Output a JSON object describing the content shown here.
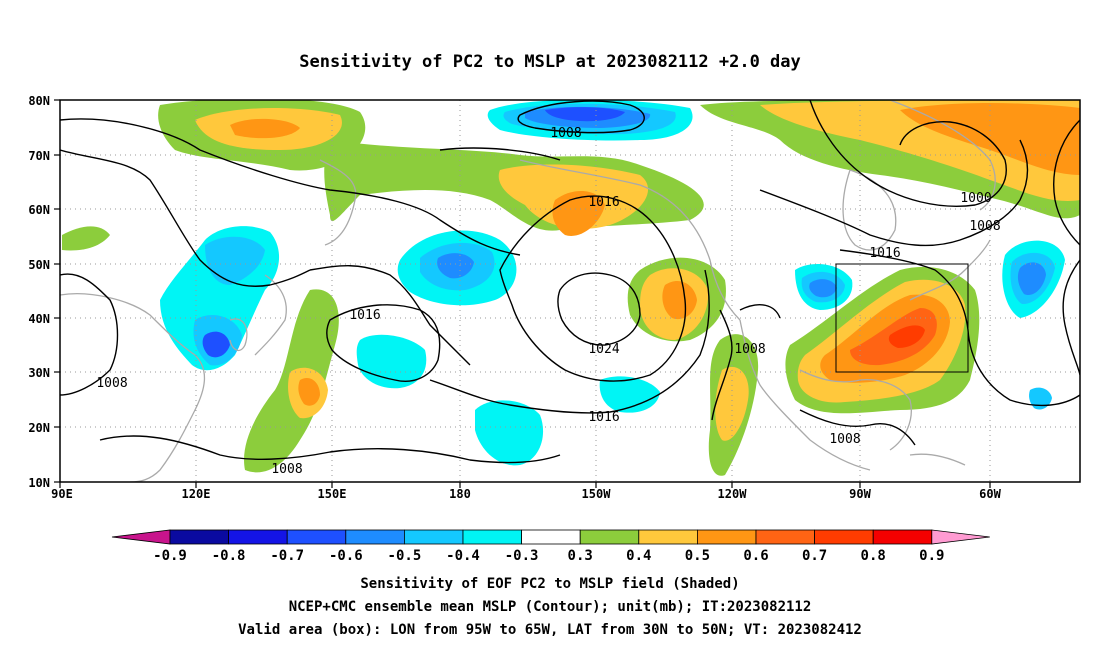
{
  "figure": {
    "title": "Sensitivity of PC2 to MSLP at 2023082112 +2.0 day",
    "lon_ticks": [
      "90E",
      "120E",
      "150E",
      "180",
      "150W",
      "120W",
      "90W",
      "60W"
    ],
    "lat_ticks": [
      "80N",
      "70N",
      "60N",
      "50N",
      "40N",
      "30N",
      "20N",
      "10N"
    ],
    "contour_labels": [
      "1008",
      "1016",
      "1000",
      "1008",
      "1016",
      "1016",
      "1024",
      "1008",
      "1008",
      "1016",
      "1008",
      "1008"
    ],
    "valid_box": {
      "lon_from": "95W",
      "lon_to": "65W",
      "lat_from": "30N",
      "lat_to": "50N"
    }
  },
  "colorbar": {
    "labels": [
      "-0.9",
      "-0.8",
      "-0.7",
      "-0.6",
      "-0.5",
      "-0.4",
      "-0.3",
      "0.3",
      "0.4",
      "0.5",
      "0.6",
      "0.7",
      "0.8",
      "0.9"
    ],
    "colors": [
      "#0a0aa0",
      "#1414e6",
      "#1e50ff",
      "#1e8cff",
      "#14c8ff",
      "#00f5f5",
      "#ffffff",
      "#8ccd3c",
      "#ffc83c",
      "#ff9614",
      "#ff6414",
      "#ff3c00",
      "#f50000"
    ],
    "low_extend_color": "#c8148c",
    "high_extend_color": "#ff9bd2"
  },
  "caption": {
    "line1": "Sensitivity of EOF PC2 to MSLP field (Shaded)",
    "line2": "NCEP+CMC ensemble mean MSLP (Contour); unit(mb); IT:2023082112",
    "line3": "Valid area (box): LON from 95W to 65W, LAT from 30N to 50N; VT: 2023082412"
  }
}
